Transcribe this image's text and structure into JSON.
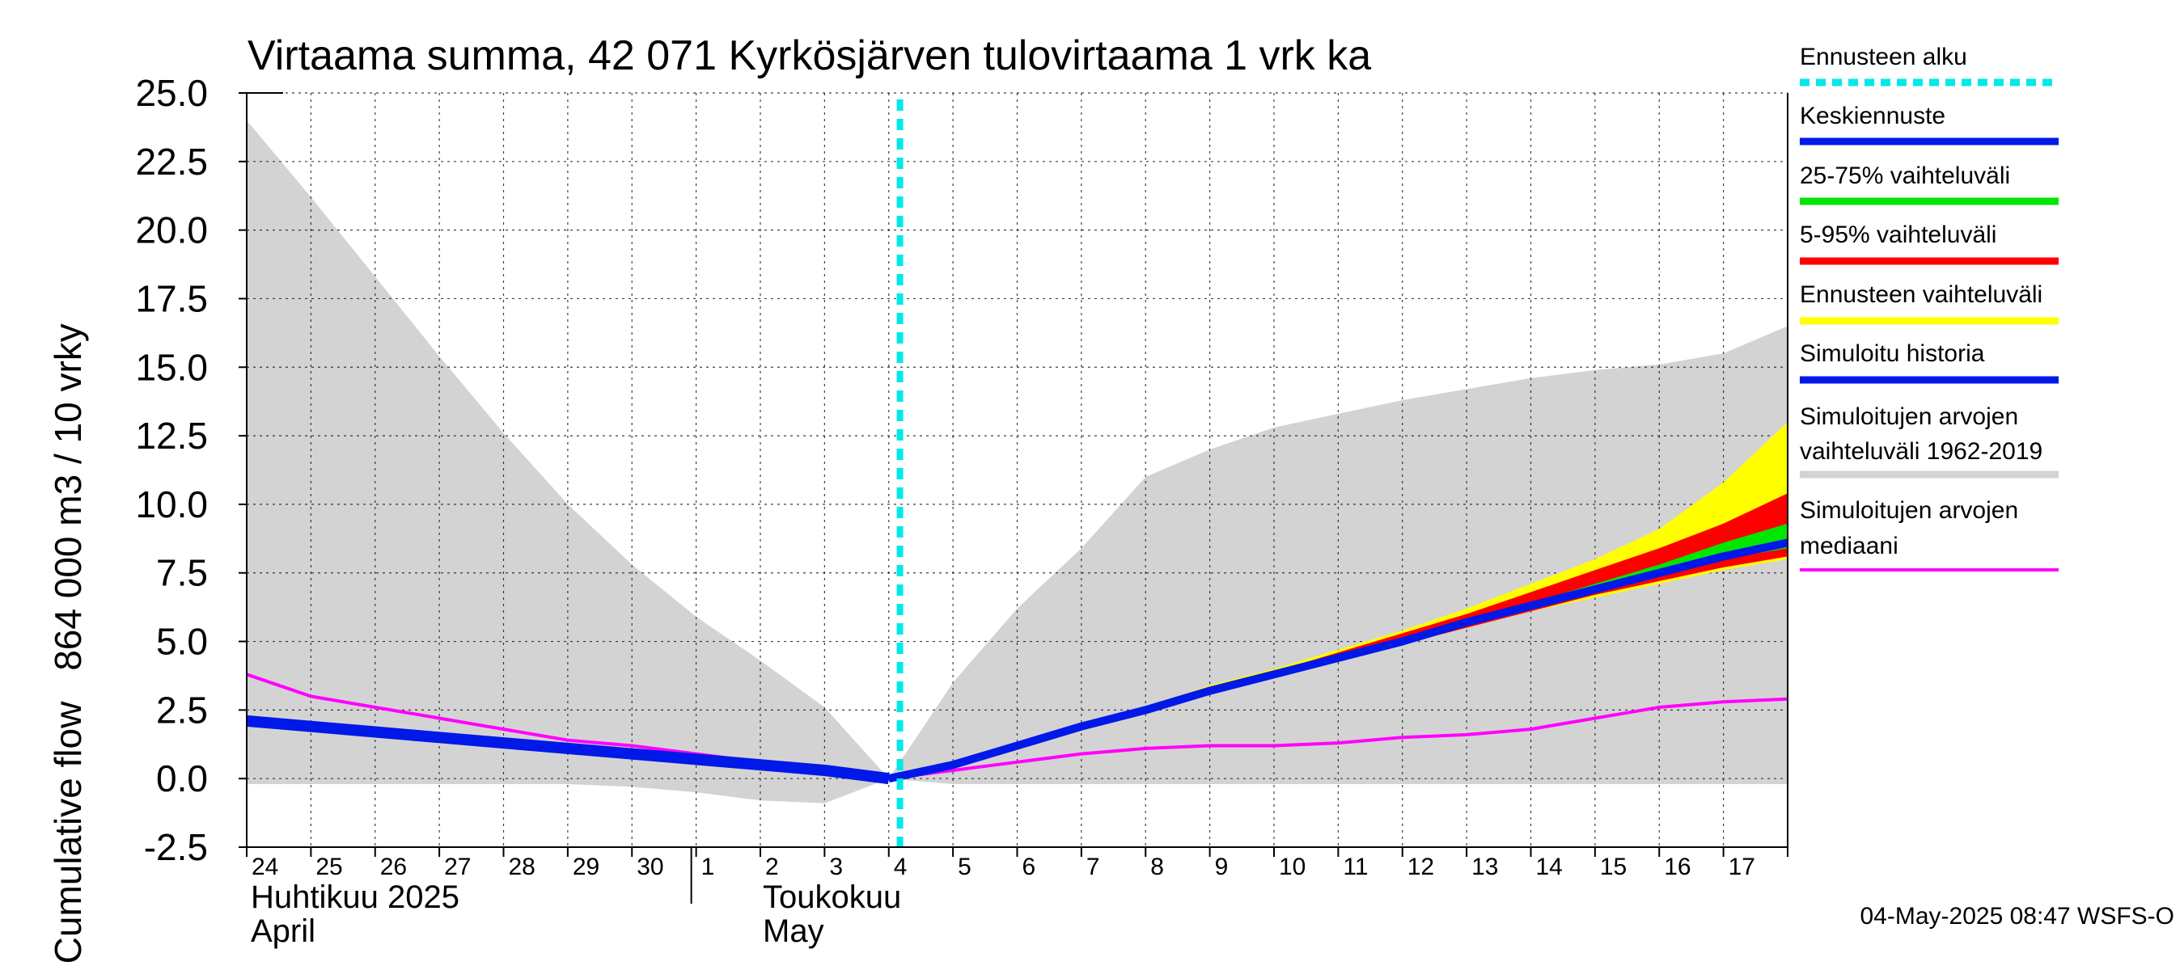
{
  "chart_data": {
    "type": "area",
    "title": "Virtaama summa, 42 071 Kyrkösjärven tulovirtaama 1 vrk ka",
    "ylabel_top": "864 000 m3 / 10 vrky",
    "ylabel_bottom": "Cumulative flow",
    "ylim": [
      -2.5,
      25.0
    ],
    "yticks": [
      "25.0",
      "22.5",
      "20.0",
      "17.5",
      "15.0",
      "12.5",
      "10.0",
      "7.5",
      "5.0",
      "2.5",
      "0.0",
      "-2.5"
    ],
    "ytick_values": [
      25.0,
      22.5,
      20.0,
      17.5,
      15.0,
      12.5,
      10.0,
      7.5,
      5.0,
      2.5,
      0.0,
      -2.5
    ],
    "xlim": [
      0,
      24
    ],
    "x_tick_labels": [
      "24",
      "25",
      "26",
      "27",
      "28",
      "29",
      "30",
      "1",
      "2",
      "3",
      "4",
      "5",
      "6",
      "7",
      "8",
      "9",
      "10",
      "11",
      "12",
      "13",
      "14",
      "15",
      "16",
      "17"
    ],
    "month_labels": [
      {
        "fi": "Huhtikuu  2025",
        "en": "April",
        "at": 0
      },
      {
        "fi": "Toukokuu",
        "en": "May",
        "at": 8
      }
    ],
    "month_divider_at": 7,
    "forecast_start": 10,
    "historical_range": {
      "x": [
        0,
        1,
        2,
        3,
        4,
        5,
        6,
        7,
        8,
        9,
        10,
        11,
        12,
        13,
        14,
        15,
        16,
        17,
        18,
        19,
        20,
        21,
        22,
        23,
        24
      ],
      "upper": [
        24.0,
        21.2,
        18.3,
        15.4,
        12.6,
        10.0,
        7.8,
        5.9,
        4.3,
        2.6,
        0.0,
        3.5,
        6.2,
        8.4,
        11.0,
        12.0,
        12.8,
        13.3,
        13.8,
        14.2,
        14.6,
        14.9,
        15.1,
        15.5,
        16.5
      ],
      "lower": [
        -0.2,
        -0.2,
        -0.2,
        -0.2,
        -0.2,
        -0.2,
        -0.3,
        -0.5,
        -0.8,
        -0.9,
        0.0,
        -0.2,
        -0.2,
        -0.2,
        -0.2,
        -0.2,
        -0.2,
        -0.2,
        -0.2,
        -0.2,
        -0.2,
        -0.2,
        -0.2,
        -0.2,
        -0.2
      ]
    },
    "forecast_x": [
      10,
      11,
      12,
      13,
      14,
      15,
      16,
      17,
      18,
      19,
      20,
      21,
      22,
      23,
      24
    ],
    "forecast_range": {
      "upper": [
        0.0,
        0.6,
        1.3,
        2.0,
        2.6,
        3.4,
        4.0,
        4.7,
        5.4,
        6.2,
        7.1,
        8.0,
        9.1,
        10.8,
        13.0
      ],
      "lower": [
        0.0,
        0.5,
        1.1,
        1.8,
        2.5,
        3.1,
        3.7,
        4.3,
        4.9,
        5.5,
        6.1,
        6.6,
        7.1,
        7.6,
        8.0
      ]
    },
    "p5_95": {
      "upper": [
        0.0,
        0.55,
        1.25,
        1.95,
        2.6,
        3.3,
        3.9,
        4.6,
        5.3,
        6.0,
        6.8,
        7.6,
        8.4,
        9.3,
        10.4
      ],
      "lower": [
        0.0,
        0.5,
        1.1,
        1.8,
        2.5,
        3.1,
        3.7,
        4.3,
        4.9,
        5.5,
        6.1,
        6.7,
        7.2,
        7.7,
        8.1
      ]
    },
    "p25_75": {
      "upper": [
        0.0,
        0.52,
        1.2,
        1.9,
        2.55,
        3.2,
        3.8,
        4.4,
        5.1,
        5.7,
        6.4,
        7.1,
        7.8,
        8.6,
        9.3
      ],
      "lower": [
        0.0,
        0.5,
        1.15,
        1.85,
        2.5,
        3.15,
        3.75,
        4.35,
        4.95,
        5.6,
        6.2,
        6.8,
        7.4,
        8.0,
        8.4
      ]
    },
    "mean_forecast": [
      0.0,
      0.5,
      1.2,
      1.9,
      2.5,
      3.2,
      3.8,
      4.4,
      5.0,
      5.7,
      6.3,
      6.9,
      7.5,
      8.1,
      8.6
    ],
    "simulated_history": {
      "x": [
        0,
        1,
        2,
        3,
        4,
        5,
        6,
        7,
        8,
        9,
        10
      ],
      "y": [
        2.1,
        1.9,
        1.7,
        1.5,
        1.3,
        1.1,
        0.9,
        0.7,
        0.5,
        0.3,
        0.0
      ]
    },
    "median": {
      "x": [
        0,
        1,
        2,
        3,
        4,
        5,
        6,
        7,
        8,
        9,
        10,
        11,
        12,
        13,
        14,
        15,
        16,
        17,
        18,
        19,
        20,
        21,
        22,
        23,
        24
      ],
      "y": [
        3.8,
        3.0,
        2.6,
        2.2,
        1.8,
        1.4,
        1.2,
        0.9,
        0.6,
        0.3,
        0.0,
        0.3,
        0.6,
        0.9,
        1.1,
        1.2,
        1.2,
        1.3,
        1.5,
        1.6,
        1.8,
        2.2,
        2.6,
        2.8,
        2.9
      ]
    },
    "legend": [
      {
        "label": "Ennusteen alku",
        "color": "#00e8e8",
        "style": "dotted"
      },
      {
        "label": "Keskiennuste",
        "color": "#0018e8",
        "style": "solid"
      },
      {
        "label": "25-75% vaihteluväli",
        "color": "#00e600",
        "style": "solid"
      },
      {
        "label": "5-95% vaihteluväli",
        "color": "#ff0000",
        "style": "solid"
      },
      {
        "label": "Ennusteen vaihteluväli",
        "color": "#ffff00",
        "style": "solid"
      },
      {
        "label": "Simuloitu historia",
        "color": "#0018e8",
        "style": "solid"
      },
      {
        "label": "Simuloitujen arvojen vaihteluväli 1962-2019",
        "lines": [
          "Simuloitujen arvojen",
          "vaihteluväli 1962-2019"
        ],
        "color": "#d3d3d3",
        "style": "solid"
      },
      {
        "label": "Simuloitujen arvojen mediaani",
        "lines": [
          "Simuloitujen arvojen",
          "mediaani"
        ],
        "color": "#ff00ff",
        "style": "solid"
      }
    ],
    "timestamp": "04-May-2025 08:47 WSFS-O"
  },
  "colors": {
    "range_gray": "#d3d3d3",
    "forecast_yellow": "#ffff00",
    "p5_95_red": "#ff0000",
    "p25_75_green": "#00e600",
    "mean_blue": "#0018e8",
    "median_magenta": "#ff00ff",
    "forecast_start_cyan": "#00e8e8"
  }
}
